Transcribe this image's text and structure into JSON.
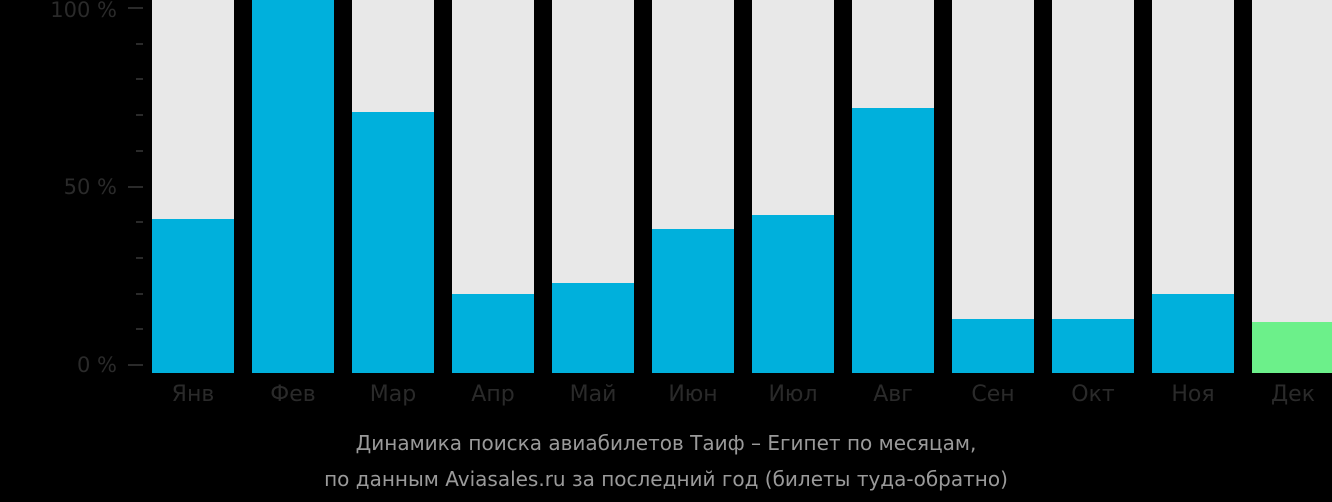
{
  "chart_data": {
    "type": "bar",
    "title": "Динамика поиска авиабилетов Таиф – Египет по месяцам,",
    "subtitle": "по данным Aviasales.ru за последний год (билеты туда-обратно)",
    "xlabel": "",
    "ylabel": "",
    "ylim": [
      0,
      100
    ],
    "yticks": [
      "0 %",
      "50 %",
      "100 %"
    ],
    "categories": [
      "Янв",
      "Фев",
      "Мар",
      "Апр",
      "Май",
      "Июн",
      "Июл",
      "Авг",
      "Сен",
      "Окт",
      "Ноя",
      "Дек"
    ],
    "values": [
      41,
      100,
      71,
      20,
      23,
      38,
      42,
      72,
      13,
      13,
      20,
      12
    ],
    "colors": {
      "bar": "#00b0dc",
      "highlight": "#6cf08a",
      "track": "#e8e8e8",
      "background": "#000000"
    },
    "highlight_index": 11,
    "grid": false,
    "legend": "none"
  }
}
